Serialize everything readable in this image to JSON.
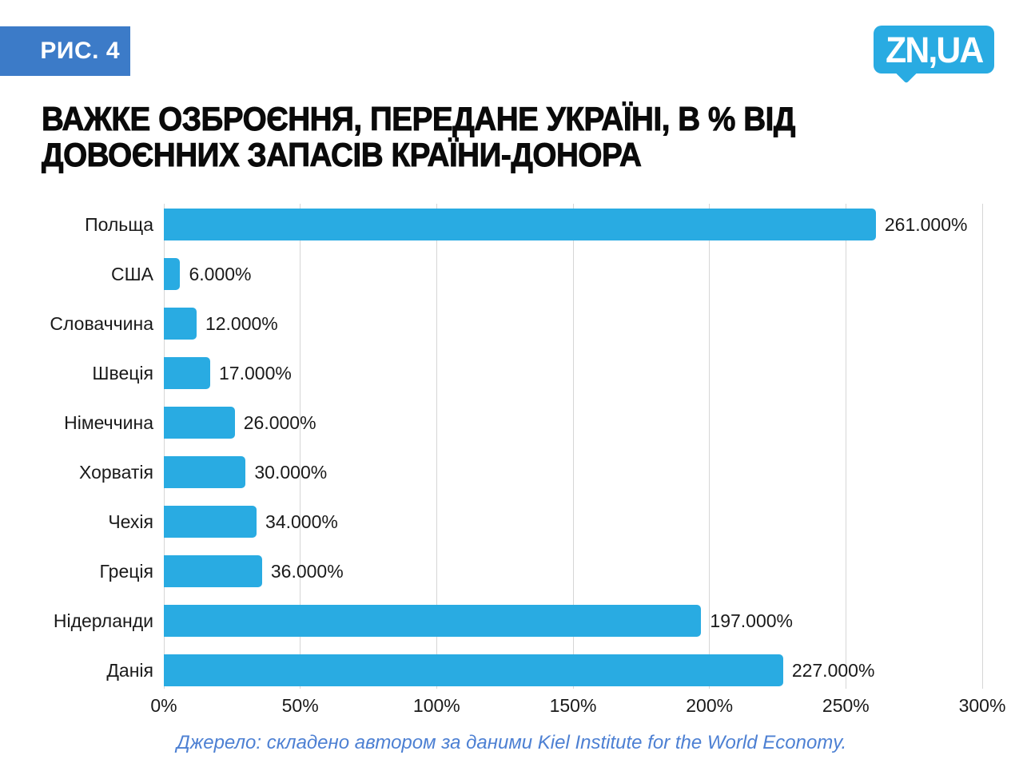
{
  "figure_label": "РИС. 4",
  "logo_text": "ZN,UA",
  "title_lines": [
    "ВАЖКЕ ОЗБРОЄННЯ, ПЕРЕДАНЕ УКРАЇНІ, В % ВІД",
    "ДОВОЄННИХ ЗАПАСІВ КРАЇНИ-ДОНОРА"
  ],
  "source_note": "Джерело: складено автором за даними Kiel Institute for the World Economy.",
  "colors": {
    "bar": "#29abe2",
    "badge": "#3c7bc8",
    "logo": "#29abe2",
    "gridline": "#d6d6d6",
    "source_text": "#4d80d3",
    "title_text": "#0a0a0a",
    "label_text": "#1a1a1a"
  },
  "chart_data": {
    "type": "bar",
    "orientation": "horizontal",
    "title": "ВАЖКЕ ОЗБРОЄННЯ, ПЕРЕДАНЕ УКРАЇНІ, В % ВІД ДОВОЄННИХ ЗАПАСІВ КРАЇНИ-ДОНОРА",
    "categories": [
      "Польща",
      "США",
      "Словаччина",
      "Швеція",
      "Німеччина",
      "Хорватія",
      "Чехія",
      "Греція",
      "Нідерланди",
      "Данія"
    ],
    "values": [
      261,
      6,
      12,
      17,
      26,
      30,
      34,
      36,
      197,
      227
    ],
    "value_labels": [
      "261.000%",
      "6.000%",
      "12.000%",
      "17.000%",
      "26.000%",
      "30.000%",
      "34.000%",
      "36.000%",
      "197.000%",
      "227.000%"
    ],
    "x_ticks": [
      "0%",
      "50%",
      "100%",
      "150%",
      "200%",
      "250%",
      "300%"
    ],
    "xlim": [
      0,
      300
    ],
    "xlabel": "",
    "ylabel": "",
    "grid": true,
    "legend": false,
    "unit": "%"
  }
}
